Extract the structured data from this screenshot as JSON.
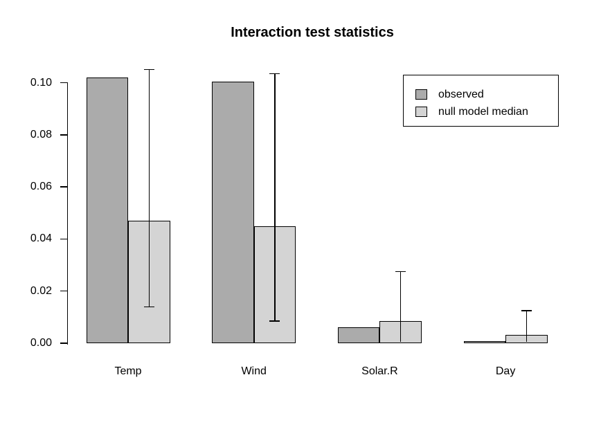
{
  "chart_data": {
    "type": "bar",
    "title": "Interaction test statistics",
    "categories": [
      "Temp",
      "Wind",
      "Solar.R",
      "Day"
    ],
    "series": [
      {
        "name": "observed",
        "color": "#ababab",
        "values": [
          0.102,
          0.1005,
          0.006,
          0.0008
        ]
      },
      {
        "name": "null model median",
        "color": "#d4d4d4",
        "values": [
          0.047,
          0.045,
          0.0085,
          0.0033
        ]
      }
    ],
    "error_bars": {
      "on_series": "null model median",
      "low": [
        0.014,
        0.0085,
        0.0005,
        0.0005
      ],
      "high": [
        0.105,
        0.1035,
        0.0275,
        0.0125
      ]
    },
    "ylim": [
      0,
      0.1
    ],
    "yticks": [
      0,
      0.02,
      0.04,
      0.06,
      0.08,
      0.1
    ],
    "ytick_labels": [
      "0.00",
      "0.02",
      "0.04",
      "0.06",
      "0.08",
      "0.10"
    ],
    "grid": false,
    "legend_position": "top-right",
    "axis_color": "#000000",
    "text_color": "#000000",
    "background": "#ffffff"
  }
}
